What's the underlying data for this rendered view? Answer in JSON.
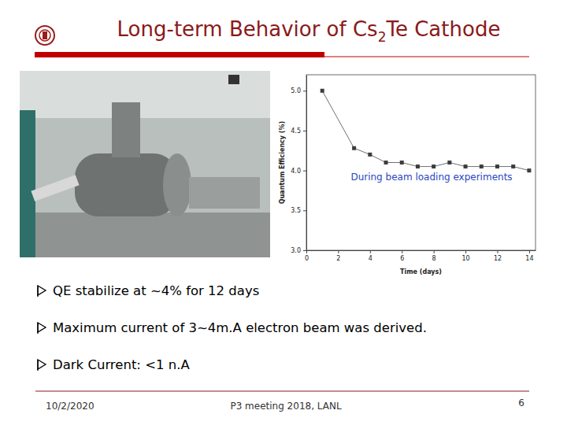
{
  "slide": {
    "title": {
      "before": "Long-term Behavior of Cs",
      "subscript": "2",
      "after": "Te Cathode"
    },
    "bullets": [
      "QE stabilize at ~4% for 12 days",
      "Maximum current of 3~4m.A electron beam was derived.",
      "Dark Current: <1 n.A"
    ],
    "footer": {
      "date": "10/2/2020",
      "event": "P3 meeting 2018, LANL",
      "page": "6"
    }
  },
  "chart_data": {
    "type": "line",
    "x_label": "Time (days)",
    "y_label": "Quantum Efficiency (%)",
    "annotation": "During beam loading experiments",
    "x": [
      1,
      3,
      4,
      5,
      6,
      7,
      8,
      9,
      10,
      11,
      12,
      13,
      14
    ],
    "values": [
      5.0,
      4.28,
      4.2,
      4.1,
      4.1,
      4.05,
      4.05,
      4.1,
      4.05,
      4.05,
      4.05,
      4.05,
      4.0
    ],
    "color": "#707070",
    "marker": "square",
    "xlim": [
      0,
      14.4
    ],
    "ylim": [
      3.0,
      5.2
    ],
    "xticks": [
      0,
      2,
      4,
      6,
      8,
      10,
      12,
      14
    ],
    "yticks": [
      {
        "value": 3.0,
        "label": "3.0"
      },
      {
        "value": 3.5,
        "label": "3.5"
      },
      {
        "value": 4.0,
        "label": "4.0"
      },
      {
        "value": 4.5,
        "label": "4.5"
      },
      {
        "value": 5.0,
        "label": "5.0"
      }
    ],
    "grid": false
  }
}
